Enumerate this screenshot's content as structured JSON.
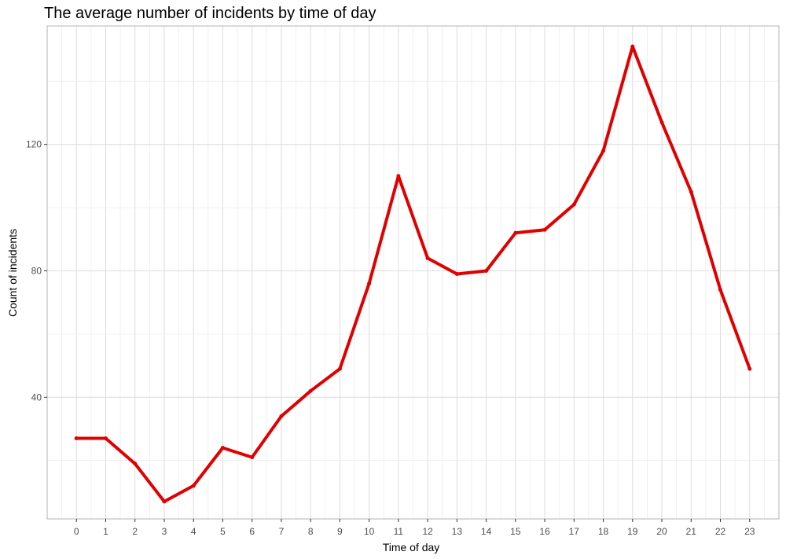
{
  "chart_data": {
    "type": "line",
    "title": "The average number of incidents by time of day",
    "xlabel": "Time of day",
    "ylabel": "Count of incidents",
    "x": [
      0,
      1,
      2,
      3,
      4,
      5,
      6,
      7,
      8,
      9,
      10,
      11,
      12,
      13,
      14,
      15,
      16,
      17,
      18,
      19,
      20,
      21,
      22,
      23
    ],
    "x_tick_labels": [
      "0",
      "1",
      "2",
      "3",
      "4",
      "5",
      "6",
      "7",
      "8",
      "9",
      "10",
      "11",
      "12",
      "13",
      "14",
      "15",
      "16",
      "17",
      "18",
      "19",
      "20",
      "21",
      "22",
      "23"
    ],
    "y_tick_labels": [
      "40",
      "80",
      "120"
    ],
    "y_ticks": [
      40,
      80,
      120
    ],
    "xlim": [
      -1,
      24
    ],
    "ylim": [
      1.5,
      157.5
    ],
    "grid": true,
    "series": [
      {
        "color": "#e00000",
        "values": [
          27,
          27,
          19,
          7,
          12,
          24,
          21,
          34,
          42,
          49,
          76,
          110,
          84,
          79,
          80,
          92,
          93,
          101,
          118,
          151,
          127,
          105,
          74,
          49
        ]
      }
    ]
  }
}
